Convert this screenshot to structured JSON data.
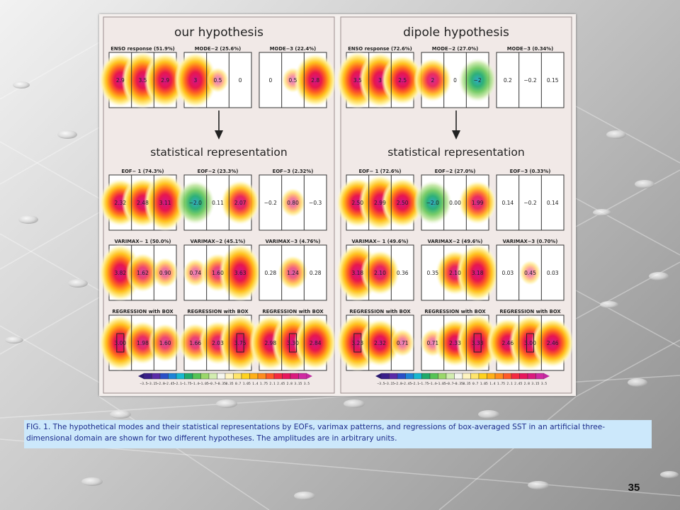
{
  "slide": {
    "number": "35",
    "caption": "FIG. 1. The hypothetical modes and their statistical representations by EOFs, varimax patterns, and regressions of box-averaged SST in an artificial three-dimensional domain are shown for two different hypotheses. The amplitudes are in arbitrary units."
  },
  "colors": {
    "caption_bg": "#cce8fb",
    "caption_text": "#1a2a8a",
    "panel_bg": "#f4efed"
  },
  "figure": {
    "halves": [
      {
        "title": "our hypothesis",
        "subtitle": "statistical representation",
        "rows": [
          [
            {
              "label": "ENSO response (51.9%)",
              "values": [
                "2.9",
                "3.5",
                "2.9"
              ],
              "box": null
            },
            {
              "label": "MODE−2 (25.6%)",
              "values": [
                "3",
                "0.5",
                "0"
              ],
              "box": null
            },
            {
              "label": "MODE−3 (22.4%)",
              "values": [
                "0",
                "0.5",
                "2.8"
              ],
              "box": null
            }
          ],
          [
            {
              "label": "EOF− 1 (74.3%)",
              "values": [
                "2.32",
                "2.48",
                "3.11"
              ],
              "box": null
            },
            {
              "label": "EOF−2 (23.3%)",
              "values": [
                "−2.0",
                "0.11",
                "2.07"
              ],
              "box": null
            },
            {
              "label": "EOF−3 (2.32%)",
              "values": [
                "−0.2",
                "0.80",
                "−0.3"
              ],
              "box": null
            }
          ],
          [
            {
              "label": "VARIMAX− 1 (50.0%)",
              "values": [
                "3.82",
                "1.62",
                "0.90"
              ],
              "box": null
            },
            {
              "label": "VARIMAX−2 (45.1%)",
              "values": [
                "0.74",
                "1.60",
                "3.63"
              ],
              "box": null
            },
            {
              "label": "VARIMAX−3 (4.76%)",
              "values": [
                "0.28",
                "1.24",
                "0.28"
              ],
              "box": null
            }
          ],
          [
            {
              "label": "REGRESSION with BOX",
              "values": [
                "3.00",
                "1.98",
                "1.60"
              ],
              "box": 0
            },
            {
              "label": "REGRESSION with BOX",
              "values": [
                "1.66",
                "2.03",
                "3.75"
              ],
              "box": 2
            },
            {
              "label": "REGRESSION with BOX",
              "values": [
                "2.98",
                "3.30",
                "2.84"
              ],
              "box": 1
            }
          ]
        ]
      },
      {
        "title": "dipole hypothesis",
        "subtitle": "statistical representation",
        "rows": [
          [
            {
              "label": "ENSO response (72.6%)",
              "values": [
                "3.5",
                "3",
                "2.5"
              ],
              "box": null
            },
            {
              "label": "MODE−2 (27.0%)",
              "values": [
                "2",
                "0",
                "−2"
              ],
              "box": null
            },
            {
              "label": "MODE−3 (0.34%)",
              "values": [
                "0.2",
                "−0.2",
                "0.15"
              ],
              "box": null
            }
          ],
          [
            {
              "label": "EOF− 1 (72.6%)",
              "values": [
                "2.50",
                "2.99",
                "2.50"
              ],
              "box": null
            },
            {
              "label": "EOF−2 (27.0%)",
              "values": [
                "−2.0",
                "0.00",
                "1.99"
              ],
              "box": null
            },
            {
              "label": "EOF−3 (0.33%)",
              "values": [
                "0.14",
                "−0.2",
                "0.14"
              ],
              "box": null
            }
          ],
          [
            {
              "label": "VARIMAX− 1 (49.6%)",
              "values": [
                "3.18",
                "2.10",
                "0.36"
              ],
              "box": null
            },
            {
              "label": "VARIMAX−2 (49.6%)",
              "values": [
                "0.35",
                "2.10",
                "3.18"
              ],
              "box": null
            },
            {
              "label": "VARIMAX−3 (0.70%)",
              "values": [
                "0.03",
                "0.45",
                "0.03"
              ],
              "box": null
            }
          ],
          [
            {
              "label": "REGRESSION with BOX",
              "values": [
                "3.23",
                "2.32",
                "0.71"
              ],
              "box": 0
            },
            {
              "label": "REGRESSION with BOX",
              "values": [
                "0.71",
                "2.33",
                "3.33"
              ],
              "box": 2
            },
            {
              "label": "REGRESSION with BOX",
              "values": [
                "2.46",
                "3.00",
                "2.46"
              ],
              "box": 1
            }
          ]
        ]
      }
    ],
    "colorbar_labels": [
      "−3.5",
      "−3.15",
      "−2.8",
      "−2.45",
      "−2.1",
      "−1.75",
      "−1.4",
      "−1.05",
      "−0.7",
      "−0.35",
      "0.35",
      "0.7",
      "1.05",
      "1.4",
      "1.75",
      "2.1",
      "2.45",
      "2.8",
      "3.15",
      "3.5"
    ],
    "colorbar_colors": [
      "#3a1f8a",
      "#5a2aa8",
      "#2a4fc8",
      "#1e84d8",
      "#18b8d0",
      "#1eaa6a",
      "#55c455",
      "#9ad86a",
      "#d2edb0",
      "#f6f6ef",
      "#fff4c0",
      "#ffe56b",
      "#ffd21e",
      "#ffb018",
      "#ff8c1e",
      "#ff5a28",
      "#f42a40",
      "#e8165c",
      "#db1a7e",
      "#d02aa2"
    ]
  }
}
